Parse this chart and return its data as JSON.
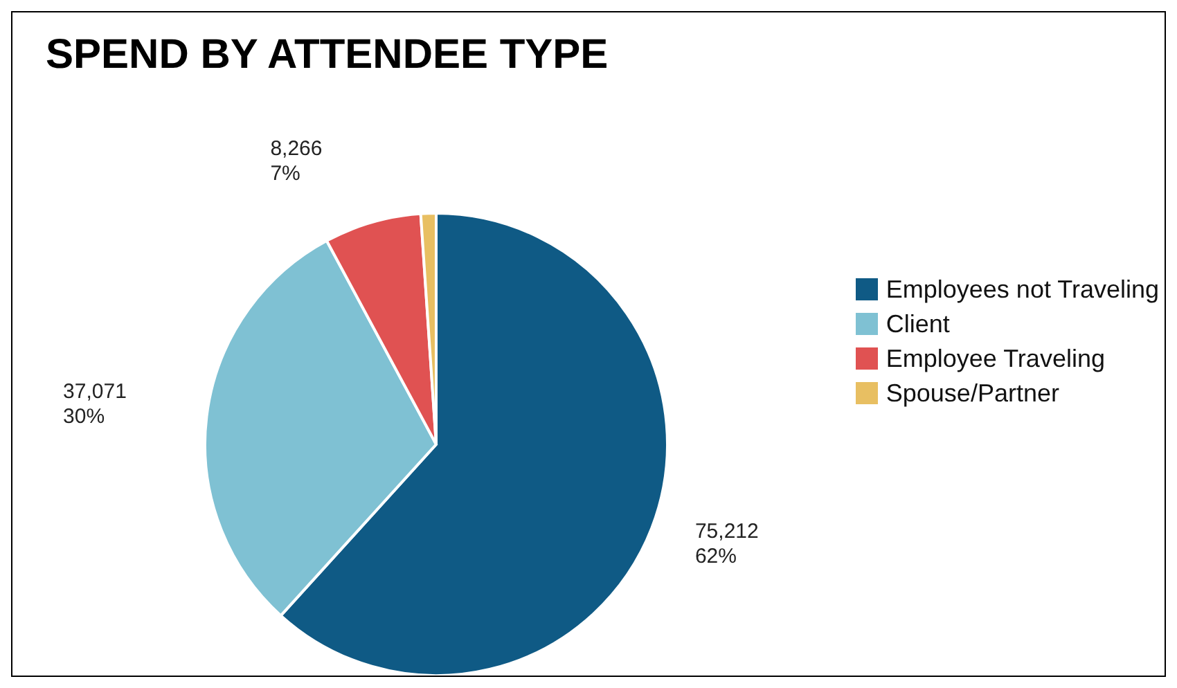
{
  "chart_data": {
    "type": "pie",
    "title": "SPEND BY ATTENDEE TYPE",
    "categories": [
      "Employees not Traveling",
      "Client",
      "Employee Traveling",
      "Spouse/Partner"
    ],
    "values": [
      75212,
      37071,
      8266,
      1300
    ],
    "colors": [
      "#0f5a85",
      "#7fc1d3",
      "#e05252",
      "#e8bf62"
    ],
    "value_labels": [
      "75,212\n62%",
      "37,071\n30%",
      "8,266\n7%",
      null
    ],
    "legend": "right"
  }
}
